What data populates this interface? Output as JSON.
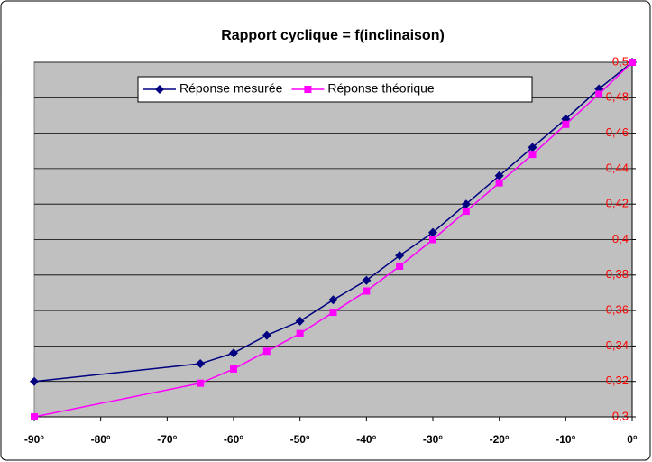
{
  "chart_data": {
    "type": "line",
    "title": "Rapport cyclique = f(inclinaison)",
    "x": [
      -90,
      -65,
      -60,
      -55,
      -50,
      -45,
      -40,
      -35,
      -30,
      -25,
      -20,
      -15,
      -10,
      -5,
      0
    ],
    "series": [
      {
        "name": "Réponse mesurée",
        "color": "#000080",
        "marker": "diamond",
        "values": [
          0.32,
          0.33,
          0.336,
          0.346,
          0.354,
          0.366,
          0.377,
          0.391,
          0.404,
          0.42,
          0.436,
          0.452,
          0.468,
          0.485,
          0.5
        ]
      },
      {
        "name": "Réponse théorique",
        "color": "#ff00ff",
        "marker": "square",
        "values": [
          0.3,
          0.319,
          0.327,
          0.337,
          0.347,
          0.359,
          0.371,
          0.385,
          0.4,
          0.416,
          0.432,
          0.448,
          0.465,
          0.482,
          0.5
        ]
      }
    ],
    "xlim": [
      -90,
      0
    ],
    "xticks": [
      {
        "value": -90,
        "label": "-90°"
      },
      {
        "value": -80,
        "label": "-80°"
      },
      {
        "value": -70,
        "label": "-70°"
      },
      {
        "value": -60,
        "label": "-60°"
      },
      {
        "value": -50,
        "label": "-50°"
      },
      {
        "value": -40,
        "label": "-40°"
      },
      {
        "value": -30,
        "label": "-30°"
      },
      {
        "value": -20,
        "label": "-20°"
      },
      {
        "value": -10,
        "label": "-10°"
      },
      {
        "value": 0,
        "label": "0°"
      }
    ],
    "ylim": [
      0.3,
      0.5
    ],
    "yticks": [
      {
        "value": 0.3,
        "label": "0,3"
      },
      {
        "value": 0.32,
        "label": "0,32"
      },
      {
        "value": 0.34,
        "label": "0,34"
      },
      {
        "value": 0.36,
        "label": "0,36"
      },
      {
        "value": 0.38,
        "label": "0,38"
      },
      {
        "value": 0.4,
        "label": "0,4"
      },
      {
        "value": 0.42,
        "label": "0,42"
      },
      {
        "value": 0.44,
        "label": "0,44"
      },
      {
        "value": 0.46,
        "label": "0,46"
      },
      {
        "value": 0.48,
        "label": "0,48"
      },
      {
        "value": 0.5,
        "label": "0,5"
      }
    ],
    "yaxis_side": "right",
    "ytick_color": "#ff0000",
    "plot_background": "#c0c0c0",
    "grid": true,
    "legend": "top"
  }
}
